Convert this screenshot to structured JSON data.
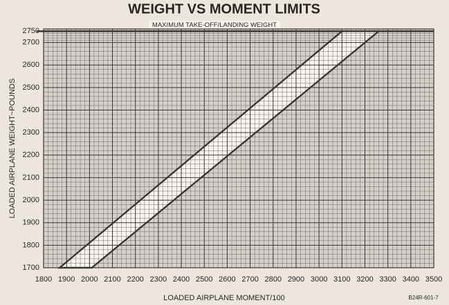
{
  "chart_data": {
    "type": "envelope",
    "title": "WEIGHT VS MOMENT LIMITS",
    "x_label": "LOADED AIRPLANE MOMENT/100",
    "y_label": "LOADED AIRPLANE WEIGHT~POUNDS",
    "annotation": "MAXIMUM TAKE-OFF/LANDING WEIGHT",
    "figure_code": "B24R-601-7",
    "reference_line": 2750,
    "x": [
      1870,
      3100,
      3260,
      2010
    ],
    "y": [
      1700,
      2750,
      2750,
      1700
    ],
    "color": "#3a3433",
    "fill": "#f8f5ef",
    "background": "#d6d0ca",
    "xlim": [
      1800,
      3500
    ],
    "ylim": [
      1700,
      2760
    ],
    "xticks": [
      1800,
      1900,
      2000,
      2100,
      2200,
      2300,
      2400,
      2500,
      2600,
      2700,
      2800,
      2900,
      3000,
      3100,
      3200,
      3300,
      3400,
      3500
    ],
    "yticks": [
      1700,
      1800,
      1900,
      2000,
      2100,
      2200,
      2300,
      2400,
      2500,
      2600,
      2700,
      2750
    ],
    "grid": true,
    "minor_divisions": 5
  }
}
